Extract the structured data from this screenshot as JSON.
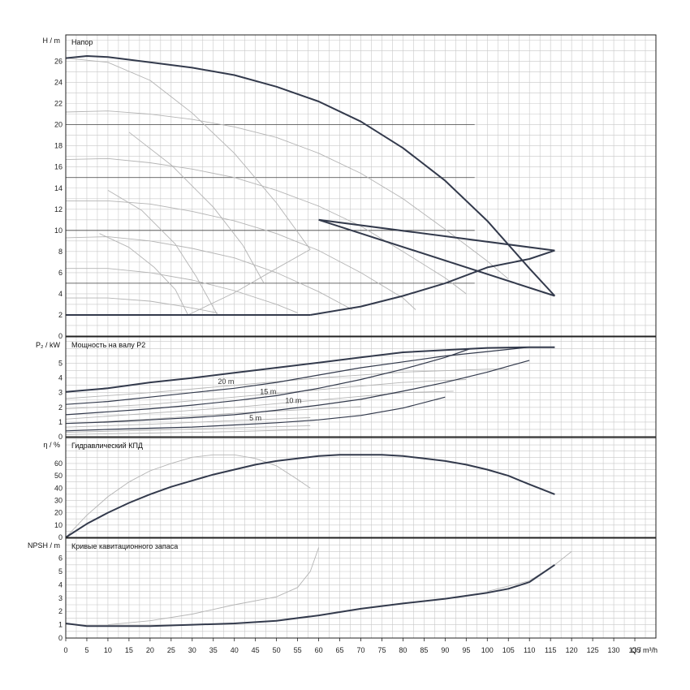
{
  "colors": {
    "main": "#333a4c",
    "grey": "#b4b4b4",
    "grid": "#c8c8c8",
    "frame": "#222222",
    "refline": "#444444"
  },
  "x_axis": {
    "label": "Q / m³/h",
    "min": 0,
    "max": 140,
    "ticks": [
      "0",
      "5",
      "10",
      "15",
      "20",
      "25",
      "30",
      "35",
      "40",
      "45",
      "50",
      "55",
      "60",
      "65",
      "70",
      "75",
      "80",
      "85",
      "90",
      "95",
      "100",
      "105",
      "110",
      "115",
      "120",
      "125",
      "130",
      "135"
    ]
  },
  "chart_data": [
    {
      "type": "line",
      "title": "Напор",
      "ylabel": "H / m",
      "ylim": [
        0,
        28.5
      ],
      "yticks": [
        "0",
        "2",
        "4",
        "6",
        "8",
        "10",
        "12",
        "14",
        "16",
        "18",
        "20",
        "22",
        "24",
        "26"
      ],
      "reference_lines_y": [
        5,
        10,
        15,
        20
      ],
      "series": [
        {
          "role": "max-curve",
          "style": "main",
          "x": [
            0,
            5,
            10,
            20,
            30,
            40,
            50,
            60,
            70,
            80,
            90,
            100,
            110,
            116
          ],
          "y": [
            26.3,
            26.5,
            26.4,
            25.9,
            25.4,
            24.7,
            23.6,
            22.2,
            20.3,
            17.8,
            14.7,
            10.9,
            6.4,
            3.8
          ]
        },
        {
          "role": "max-envelope",
          "style": "main",
          "x": [
            116,
            60
          ],
          "y": [
            3.8,
            11
          ]
        },
        {
          "role": "lower-envelope",
          "style": "main",
          "x": [
            0,
            58
          ],
          "y": [
            2,
            2
          ]
        },
        {
          "role": "lower-envelope",
          "style": "main",
          "x": [
            58,
            70,
            80,
            90,
            100,
            110,
            116
          ],
          "y": [
            2,
            2.8,
            3.8,
            5,
            6.5,
            7.3,
            8.1
          ]
        },
        {
          "role": "upper-envelope",
          "style": "main",
          "x": [
            60,
            116
          ],
          "y": [
            11,
            8.1
          ]
        },
        {
          "role": "speed-curve",
          "style": "grey",
          "x": [
            0,
            10,
            20,
            30,
            40,
            50,
            60,
            70,
            80,
            90,
            100,
            105
          ],
          "y": [
            21.2,
            21.3,
            21,
            20.5,
            19.8,
            18.8,
            17.3,
            15.4,
            13,
            10.1,
            7.1,
            5.4
          ]
        },
        {
          "role": "speed-curve",
          "style": "grey",
          "x": [
            0,
            10,
            20,
            30,
            40,
            50,
            60,
            70,
            80,
            90,
            95
          ],
          "y": [
            16.7,
            16.8,
            16.4,
            15.8,
            15,
            13.8,
            12.3,
            10.4,
            8,
            5.5,
            4
          ]
        },
        {
          "role": "speed-curve",
          "style": "grey",
          "x": [
            0,
            10,
            20,
            30,
            40,
            50,
            60,
            70,
            80,
            83
          ],
          "y": [
            12.8,
            12.8,
            12.5,
            11.8,
            10.9,
            9.7,
            8.1,
            6,
            3.6,
            2.5
          ]
        },
        {
          "role": "speed-curve",
          "style": "grey",
          "x": [
            0,
            10,
            20,
            30,
            40,
            50,
            60,
            68
          ],
          "y": [
            9.3,
            9.4,
            9,
            8.3,
            7.4,
            6,
            4.2,
            2.5
          ]
        },
        {
          "role": "speed-curve",
          "style": "grey",
          "x": [
            0,
            10,
            20,
            30,
            40,
            50,
            55
          ],
          "y": [
            6.4,
            6.4,
            6,
            5.3,
            4.3,
            3,
            2.2
          ]
        },
        {
          "role": "speed-curve",
          "style": "grey",
          "x": [
            0,
            10,
            20,
            28,
            36
          ],
          "y": [
            3.6,
            3.6,
            3.3,
            2.8,
            2.2
          ]
        },
        {
          "role": "system-curve",
          "style": "grey",
          "x": [
            0,
            10,
            20,
            30,
            40,
            50,
            58
          ],
          "y": [
            26.3,
            25.9,
            24.2,
            21.1,
            17.3,
            12.6,
            8.2
          ]
        },
        {
          "role": "system-curve",
          "style": "grey",
          "x": [
            15,
            25,
            35,
            42,
            47
          ],
          "y": [
            19.3,
            16.2,
            12.2,
            8.6,
            5
          ]
        },
        {
          "role": "system-curve",
          "style": "grey",
          "x": [
            10,
            18,
            26,
            31,
            36
          ],
          "y": [
            13.8,
            11.9,
            8.7,
            5.6,
            2
          ]
        },
        {
          "role": "system-curve",
          "style": "grey",
          "x": [
            8,
            15,
            21,
            26,
            29
          ],
          "y": [
            9.7,
            8.4,
            6.5,
            4.4,
            2
          ]
        },
        {
          "role": "system-curve",
          "style": "grey",
          "x": [
            29,
            40,
            50,
            58
          ],
          "y": [
            2,
            4.1,
            6.4,
            8.2
          ]
        }
      ]
    },
    {
      "type": "line",
      "title": "Мощность на валу P2",
      "ylabel": "P₂ / kW",
      "ylim": [
        0,
        6.8
      ],
      "yticks": [
        "0",
        "1",
        "2",
        "3",
        "4",
        "5"
      ],
      "annotations": [
        {
          "text": "20 m",
          "x": 38,
          "y": 3.6
        },
        {
          "text": "15 m",
          "x": 48,
          "y": 2.9
        },
        {
          "text": "10 m",
          "x": 54,
          "y": 2.3
        },
        {
          "text": "5 m",
          "x": 45,
          "y": 1.1
        }
      ],
      "series": [
        {
          "role": "max-power",
          "style": "main",
          "x": [
            0,
            10,
            20,
            30,
            40,
            50,
            60,
            70,
            80,
            90,
            100,
            110,
            116
          ],
          "y": [
            3.05,
            3.3,
            3.7,
            4,
            4.35,
            4.7,
            5.05,
            5.4,
            5.75,
            5.9,
            6.05,
            6.1,
            6.1
          ]
        },
        {
          "role": "power-20m",
          "style": "main",
          "x": [
            0,
            10,
            20,
            30,
            40,
            50,
            60,
            70,
            80,
            90,
            100,
            110
          ],
          "y": [
            2.2,
            2.4,
            2.7,
            3,
            3.3,
            3.7,
            4.2,
            4.7,
            5.1,
            5.5,
            5.8,
            6.1
          ]
        },
        {
          "role": "power-15m",
          "style": "main",
          "x": [
            0,
            10,
            20,
            30,
            40,
            50,
            60,
            70,
            80,
            90,
            96
          ],
          "y": [
            1.5,
            1.7,
            1.9,
            2.15,
            2.45,
            2.8,
            3.3,
            3.9,
            4.6,
            5.4,
            6
          ]
        },
        {
          "role": "power-10m",
          "style": "main",
          "x": [
            0,
            10,
            20,
            30,
            40,
            50,
            60,
            70,
            80,
            90,
            100,
            110
          ],
          "y": [
            0.9,
            1,
            1.15,
            1.3,
            1.5,
            1.8,
            2.15,
            2.55,
            3.1,
            3.7,
            4.4,
            5.2
          ]
        },
        {
          "role": "power-5m",
          "style": "main",
          "x": [
            0,
            10,
            20,
            30,
            40,
            50,
            60,
            70,
            80,
            90
          ],
          "y": [
            0.4,
            0.5,
            0.58,
            0.66,
            0.8,
            0.95,
            1.15,
            1.45,
            1.95,
            2.7
          ]
        },
        {
          "role": "power-grey",
          "style": "grey",
          "x": [
            0,
            20,
            40,
            60,
            80,
            100,
            105
          ],
          "y": [
            2.6,
            3,
            3.5,
            4,
            4.4,
            4.6,
            4.6
          ]
        },
        {
          "role": "power-grey",
          "style": "grey",
          "x": [
            0,
            20,
            40,
            60,
            80,
            95
          ],
          "y": [
            1.9,
            2.2,
            2.7,
            3.2,
            3.7,
            3.9
          ]
        },
        {
          "role": "power-grey",
          "style": "grey",
          "x": [
            0,
            20,
            40,
            60,
            80,
            92
          ],
          "y": [
            1.2,
            1.6,
            2,
            2.5,
            3,
            3.1
          ]
        },
        {
          "role": "power-grey",
          "style": "grey",
          "x": [
            0,
            20,
            40,
            60,
            70
          ],
          "y": [
            0.9,
            1.2,
            1.6,
            1.9,
            2.05
          ]
        },
        {
          "role": "power-grey",
          "style": "grey",
          "x": [
            0,
            20,
            40,
            58
          ],
          "y": [
            0.65,
            0.85,
            1.1,
            1.3
          ]
        },
        {
          "role": "power-grey",
          "style": "grey",
          "x": [
            0,
            20,
            40,
            58
          ],
          "y": [
            0.3,
            0.45,
            0.6,
            0.75
          ]
        },
        {
          "role": "power-grey",
          "style": "grey",
          "x": [
            0,
            20,
            40,
            58
          ],
          "y": [
            0.15,
            0.25,
            0.35,
            0.5
          ]
        }
      ]
    },
    {
      "type": "line",
      "title": "Гидравлический КПД",
      "ylabel": "η / %",
      "ylim": [
        0,
        81
      ],
      "yticks": [
        "0",
        "10",
        "20",
        "30",
        "40",
        "50",
        "60"
      ],
      "series": [
        {
          "role": "efficiency",
          "style": "main",
          "x": [
            0,
            5,
            10,
            15,
            20,
            25,
            30,
            35,
            40,
            45,
            50,
            55,
            60,
            65,
            70,
            75,
            80,
            85,
            90,
            95,
            100,
            105,
            110,
            116
          ],
          "y": [
            0,
            11,
            20,
            28,
            35,
            41,
            46,
            51,
            55,
            59,
            62,
            64,
            66,
            67,
            67,
            67,
            66,
            64,
            62,
            59,
            55,
            50,
            43,
            35
          ]
        },
        {
          "role": "efficiency-grey",
          "style": "grey",
          "x": [
            0,
            5,
            10,
            15,
            20,
            25,
            30,
            35,
            40,
            45,
            50,
            55,
            58
          ],
          "y": [
            0,
            18,
            33,
            45,
            54,
            60,
            65,
            67,
            67,
            64,
            58,
            47,
            40
          ]
        }
      ]
    },
    {
      "type": "line",
      "title": "Кривые кавитационного запаса",
      "ylabel": "NPSH / m",
      "ylim": [
        0,
        7.5
      ],
      "yticks": [
        "0",
        "1",
        "2",
        "3",
        "4",
        "5",
        "6"
      ],
      "series": [
        {
          "role": "npsh",
          "style": "main",
          "x": [
            0,
            5,
            10,
            20,
            30,
            40,
            50,
            60,
            70,
            80,
            90,
            100,
            105,
            110,
            116
          ],
          "y": [
            1.1,
            0.9,
            0.9,
            0.9,
            1,
            1.1,
            1.3,
            1.7,
            2.2,
            2.6,
            2.95,
            3.4,
            3.7,
            4.2,
            5.5
          ]
        },
        {
          "role": "npsh-grey",
          "style": "grey",
          "x": [
            10,
            20,
            30,
            40,
            50,
            55,
            58,
            60
          ],
          "y": [
            1,
            1.3,
            1.8,
            2.5,
            3.1,
            3.8,
            5,
            6.8
          ]
        },
        {
          "role": "npsh-grey",
          "style": "grey",
          "x": [
            100,
            110,
            116,
            120
          ],
          "y": [
            3.5,
            4.3,
            5.5,
            6.5
          ]
        }
      ]
    }
  ]
}
